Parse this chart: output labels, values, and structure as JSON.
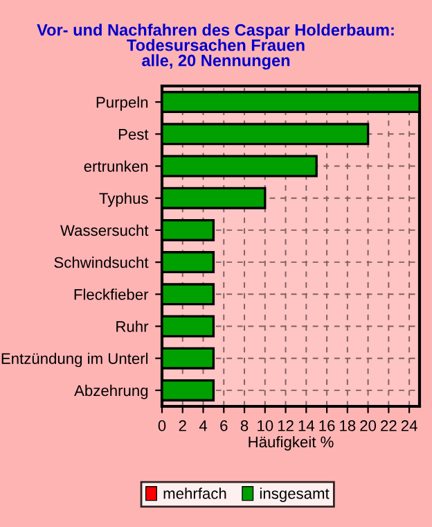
{
  "chart_data": {
    "type": "bar",
    "orientation": "horizontal",
    "title": "Vor- und Nachfahren des Caspar Holderbaum:\nTodesursachen Frauen\nalle, 20 Nennungen",
    "xlabel": "Häufigkeit %",
    "categories": [
      "Purpeln",
      "Pest",
      "ertrunken",
      "Typhus",
      "Wassersucht",
      "Schwindsucht",
      "Fleckfieber",
      "Ruhr",
      "Entzündung im Unterl",
      "Abzehrung"
    ],
    "series": [
      {
        "name": "mehrfach",
        "color": "#ff0000",
        "values": [
          0,
          0,
          0,
          0,
          0,
          0,
          0,
          0,
          0,
          0
        ]
      },
      {
        "name": "insgesamt",
        "color": "#00a000",
        "values": [
          25,
          20,
          15,
          10,
          5,
          5,
          5,
          5,
          5,
          5
        ]
      }
    ],
    "xlim": [
      0,
      25
    ],
    "xticks": [
      0,
      2,
      4,
      6,
      8,
      10,
      12,
      14,
      16,
      18,
      20,
      22,
      24
    ],
    "grid": true,
    "legend": "bottom"
  }
}
